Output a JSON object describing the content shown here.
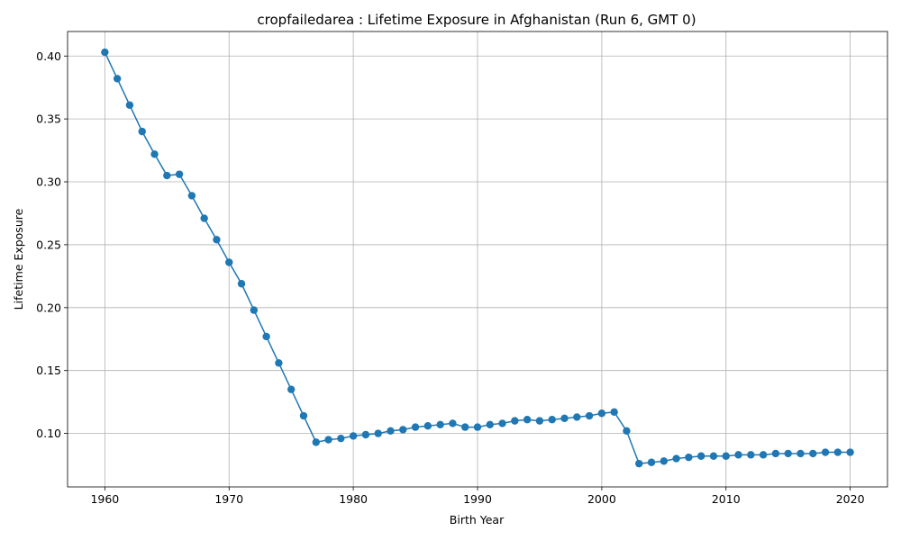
{
  "chart_data": {
    "type": "line",
    "title": "cropfailedarea : Lifetime Exposure in Afghanistan (Run 6, GMT 0)",
    "xlabel": "Birth Year",
    "ylabel": "Lifetime Exposure",
    "xlim": [
      1957,
      2023
    ],
    "ylim": [
      0.0575,
      0.4195
    ],
    "xticks": [
      1960,
      1970,
      1980,
      1990,
      2000,
      2010,
      2020
    ],
    "yticks": [
      0.1,
      0.15,
      0.2,
      0.25,
      0.3,
      0.35,
      0.4
    ],
    "ytick_labels": [
      "0.10",
      "0.15",
      "0.20",
      "0.25",
      "0.30",
      "0.35",
      "0.40"
    ],
    "grid": true,
    "marker": "circle",
    "color": "#1f77b4",
    "series": [
      {
        "x": [
          1960,
          1961,
          1962,
          1963,
          1964,
          1965,
          1966,
          1967,
          1968,
          1969,
          1970,
          1971,
          1972,
          1973,
          1974,
          1975,
          1976,
          1977,
          1978,
          1979,
          1980,
          1981,
          1982,
          1983,
          1984,
          1985,
          1986,
          1987,
          1988,
          1989,
          1990,
          1991,
          1992,
          1993,
          1994,
          1995,
          1996,
          1997,
          1998,
          1999,
          2000,
          2001,
          2002,
          2003,
          2004,
          2005,
          2006,
          2007,
          2008,
          2009,
          2010,
          2011,
          2012,
          2013,
          2014,
          2015,
          2016,
          2017,
          2018,
          2019,
          2020
        ],
        "values": [
          0.403,
          0.382,
          0.361,
          0.34,
          0.322,
          0.305,
          0.306,
          0.289,
          0.271,
          0.254,
          0.236,
          0.219,
          0.198,
          0.177,
          0.156,
          0.135,
          0.114,
          0.093,
          0.095,
          0.096,
          0.098,
          0.099,
          0.1,
          0.102,
          0.103,
          0.105,
          0.106,
          0.107,
          0.108,
          0.105,
          0.105,
          0.107,
          0.108,
          0.11,
          0.111,
          0.11,
          0.111,
          0.112,
          0.113,
          0.114,
          0.116,
          0.117,
          0.102,
          0.076,
          0.077,
          0.078,
          0.08,
          0.081,
          0.082,
          0.082,
          0.082,
          0.083,
          0.083,
          0.083,
          0.084,
          0.084,
          0.084,
          0.084,
          0.085,
          0.085,
          0.085
        ]
      }
    ]
  }
}
